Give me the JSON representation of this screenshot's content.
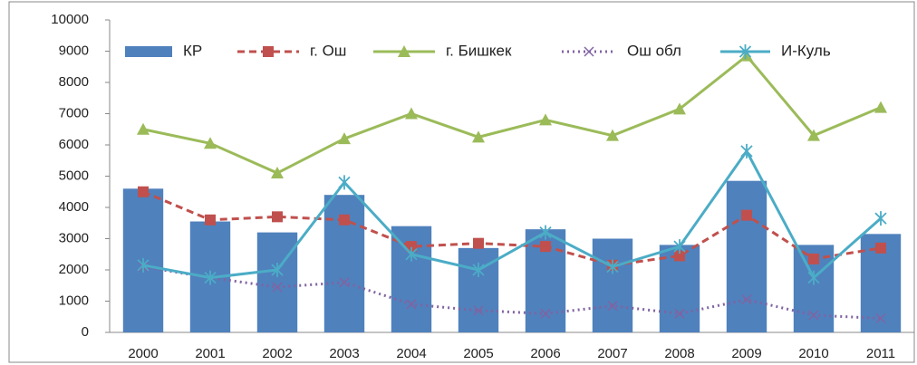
{
  "chart_data": {
    "type": "combo",
    "categories": [
      "2000",
      "2001",
      "2002",
      "2003",
      "2004",
      "2005",
      "2006",
      "2007",
      "2008",
      "2009",
      "2010",
      "2011"
    ],
    "ylim": [
      0,
      10000
    ],
    "yticks": [
      0,
      1000,
      2000,
      3000,
      4000,
      5000,
      6000,
      7000,
      8000,
      9000,
      10000
    ],
    "series": [
      {
        "name": "КР",
        "type": "bar",
        "color": "#4f81bd",
        "values": [
          4600,
          3550,
          3200,
          4400,
          3400,
          2700,
          3300,
          3000,
          2800,
          4850,
          2800,
          3150
        ]
      },
      {
        "name": "г. Ош",
        "type": "line",
        "color": "#c0504d",
        "dash": "dashed",
        "marker": "square",
        "values": [
          4500,
          3600,
          3700,
          3600,
          2750,
          2850,
          2750,
          2150,
          2450,
          3750,
          2350,
          2700
        ]
      },
      {
        "name": "г. Бишкек",
        "type": "line",
        "color": "#9bbb59",
        "dash": "solid",
        "marker": "triangle",
        "values": [
          6500,
          6050,
          5100,
          6200,
          7000,
          6250,
          6800,
          6300,
          7150,
          8850,
          6300,
          7200
        ]
      },
      {
        "name": "Ош обл",
        "type": "line",
        "color": "#8064a2",
        "dash": "dotted",
        "marker": "x",
        "values": [
          2100,
          1750,
          1450,
          1600,
          900,
          700,
          600,
          850,
          600,
          1050,
          550,
          450
        ]
      },
      {
        "name": "И-Куль",
        "type": "line",
        "color": "#4bacc6",
        "dash": "solid",
        "marker": "star",
        "values": [
          2150,
          1750,
          2000,
          4800,
          2500,
          2000,
          3200,
          2100,
          2750,
          5800,
          1750,
          3650
        ]
      }
    ]
  }
}
